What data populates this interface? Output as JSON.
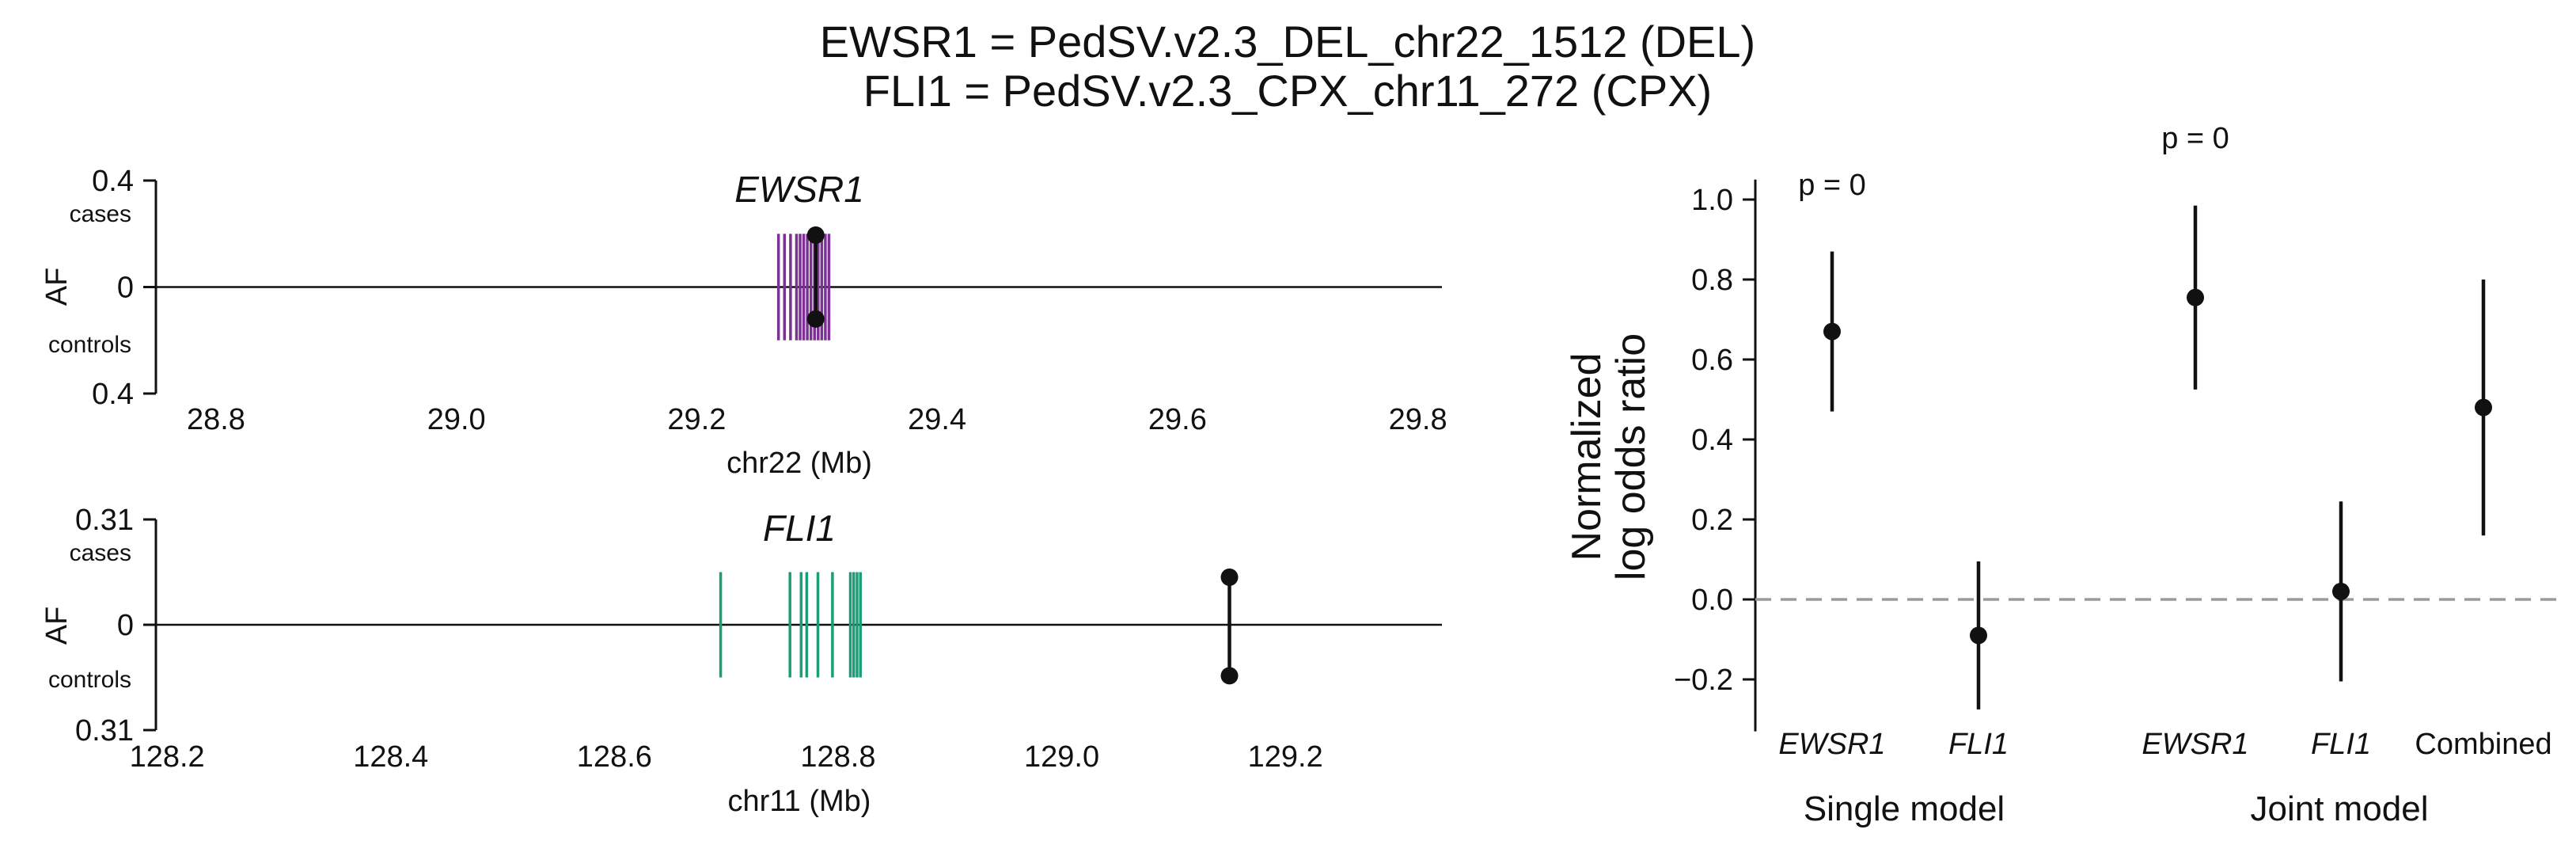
{
  "figure": {
    "title_line1": "EWSR1 = PedSV.v2.3_DEL_chr22_1512 (DEL)",
    "title_line2": "FLI1 = PedSV.v2.3_CPX_chr11_272 (CPX)"
  },
  "chart_data": [
    {
      "type": "scatter",
      "panel": "EWSR1 locus",
      "title": "EWSR1",
      "xlabel": "chr22 (Mb)",
      "ylabel": "AF",
      "xlim": [
        28.75,
        29.82
      ],
      "xticks": [
        "28.8",
        "29.0",
        "29.2",
        "29.4",
        "29.6",
        "29.8"
      ],
      "xtick_values": [
        28.8,
        29.0,
        29.2,
        29.4,
        29.6,
        29.8
      ],
      "ylim": [
        -0.4,
        0.4
      ],
      "yticks": [
        "0.4",
        "0",
        "0.4"
      ],
      "ytick_values": [
        0.4,
        0,
        -0.4
      ],
      "cases_label": "cases",
      "controls_label": "controls",
      "gene_color": "#7b3294",
      "exon_positions": [
        29.268,
        29.273,
        29.278,
        29.283,
        29.286,
        29.289,
        29.292,
        29.295,
        29.298,
        29.301,
        29.304,
        29.307,
        29.31
      ],
      "exon_half_height": 0.2,
      "sv_position": 29.299,
      "af_cases": 0.195,
      "af_controls": 0.12
    },
    {
      "type": "scatter",
      "panel": "FLI1 locus",
      "title": "FLI1",
      "xlabel": "chr11 (Mb)",
      "ylabel": "AF",
      "xlim": [
        128.19,
        129.34
      ],
      "xticks": [
        "128.2",
        "128.4",
        "128.6",
        "128.8",
        "129.0",
        "129.2"
      ],
      "xtick_values": [
        128.2,
        128.4,
        128.6,
        128.8,
        129.0,
        129.2
      ],
      "ylim": [
        -0.31,
        0.31
      ],
      "yticks": [
        "0.31",
        "0",
        "0.31"
      ],
      "ytick_values": [
        0.31,
        0,
        -0.31
      ],
      "cases_label": "cases",
      "controls_label": "controls",
      "gene_color": "#1b9e77",
      "exon_positions": [
        128.695,
        128.757,
        128.767,
        128.772,
        128.782,
        128.795,
        128.811,
        128.814,
        128.817,
        128.82
      ],
      "exon_half_height": 0.155,
      "sv_position": 129.15,
      "af_cases": 0.14,
      "af_controls": 0.15
    },
    {
      "type": "scatter",
      "panel": "odds ratios",
      "ylabel_line1": "Normalized",
      "ylabel_line2": "log odds ratio",
      "ylim": [
        -0.33,
        1.05
      ],
      "yticks": [
        "1.0",
        "0.8",
        "0.6",
        "0.4",
        "0.2",
        "0.0",
        "−0.2"
      ],
      "ytick_values": [
        1.0,
        0.8,
        0.6,
        0.4,
        0.2,
        0.0,
        -0.2
      ],
      "reference_line": 0.0,
      "categories": [
        "EWSR1",
        "FLI1",
        "EWSR1",
        "FLI1",
        "Combined"
      ],
      "category_italic": [
        true,
        true,
        true,
        true,
        false
      ],
      "groups": [
        {
          "label": "Single model",
          "categories": [
            0,
            1
          ],
          "pvalue": "p = 0"
        },
        {
          "label": "Joint model",
          "categories": [
            2,
            3,
            4
          ],
          "pvalue": "p = 0"
        }
      ],
      "estimates": [
        0.67,
        -0.09,
        0.755,
        0.02,
        0.48
      ],
      "ci_low": [
        0.47,
        -0.275,
        0.525,
        -0.205,
        0.16
      ],
      "ci_high": [
        0.87,
        0.095,
        0.985,
        0.245,
        0.8
      ]
    }
  ]
}
